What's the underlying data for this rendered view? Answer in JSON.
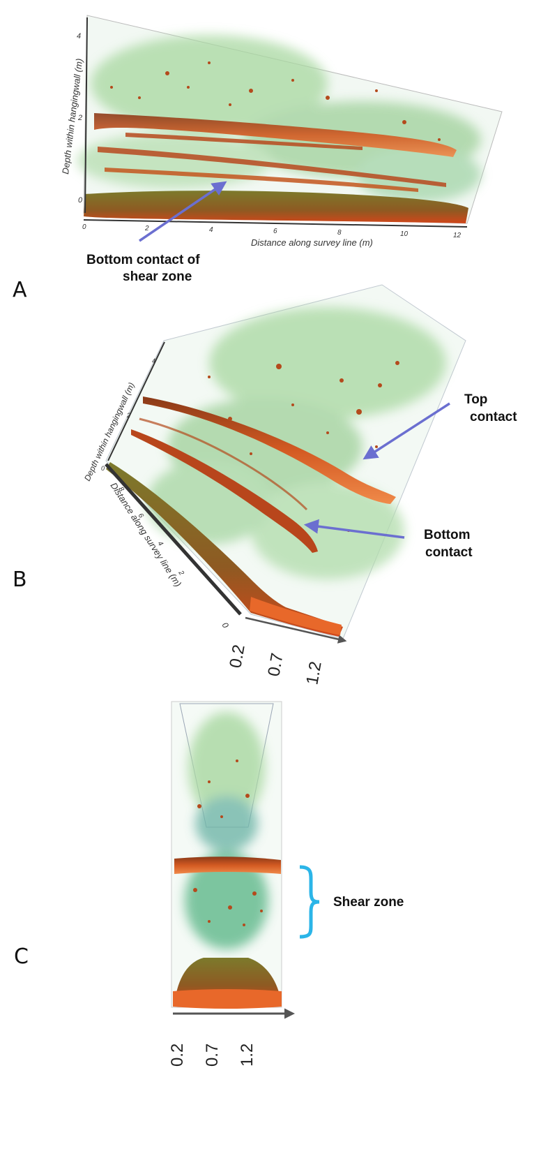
{
  "panels": [
    {
      "letter": "A",
      "y_axis_label": "Depth within hangingwall (m)",
      "x_axis_label": "Distance along survey line (m)",
      "y_ticks": [
        "4",
        "2",
        "0"
      ],
      "x_ticks": [
        "0",
        "2",
        "4",
        "6",
        "8",
        "10",
        "12"
      ],
      "annotation": [
        "Bottom contact of",
        "shear zone"
      ]
    },
    {
      "letter": "B",
      "y_axis_label": "Depth within hangingwall (m)",
      "x_axis_label": "Distance along survey line (m)",
      "y_ticks": [
        "4",
        "2",
        "0"
      ],
      "x_ticks": [
        "8",
        "6",
        "4",
        "2",
        "0"
      ],
      "width_ticks": [
        "0.2",
        "0.7",
        "1.2"
      ],
      "annotations": [
        {
          "lines": [
            "Top",
            "contact"
          ]
        },
        {
          "lines": [
            "Bottom",
            "contact"
          ]
        }
      ]
    },
    {
      "letter": "C",
      "width_ticks": [
        "0.2",
        "0.7",
        "1.2"
      ],
      "annotation": "Shear zone"
    }
  ],
  "colors": {
    "arrow": "#6b6fd0",
    "brace": "#2bb5e8",
    "cloud": "#9fd09a",
    "reflector": "#c4421a",
    "reflector_top": "#7a8a2a"
  }
}
